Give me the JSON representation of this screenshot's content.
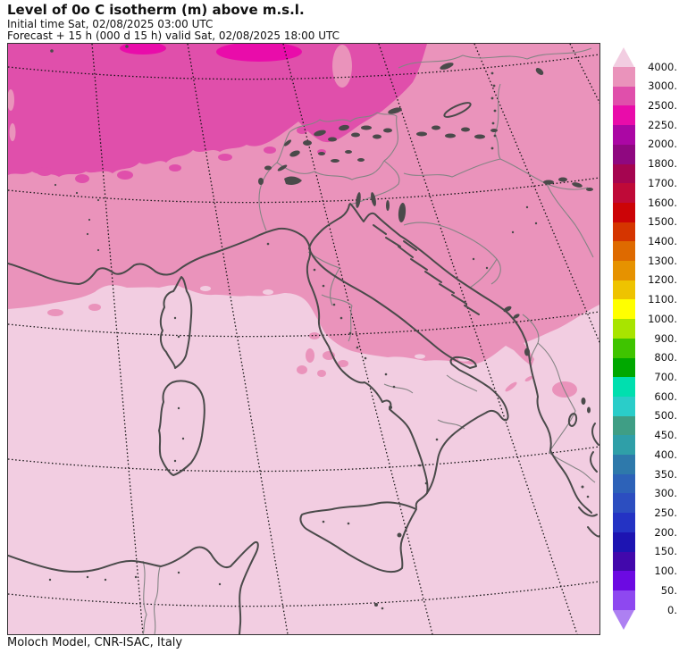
{
  "header": {
    "title": "Level of 0o C isotherm (m) above m.s.l.",
    "initial_time_line": "Initial time  Sat, 02/08/2025  03:00 UTC",
    "forecast_line": "Forecast  +  15 h  (000 d 15 h)  valid Sat, 02/08/2025 18:00 UTC"
  },
  "footer": {
    "attribution": "Moloch Model, CNR-ISAC, Italy"
  },
  "colorbar": {
    "unit": "m",
    "labels": [
      "4000.",
      "3000.",
      "2500.",
      "2250.",
      "2000.",
      "1800.",
      "1700.",
      "1600.",
      "1500.",
      "1400.",
      "1300.",
      "1200.",
      "1100.",
      "1000.",
      "900.",
      "800.",
      "700.",
      "600.",
      "500.",
      "450.",
      "400.",
      "350.",
      "300.",
      "250.",
      "200.",
      "150.",
      "100.",
      "50.",
      "0."
    ],
    "arrow_top_color": "#f2cde1",
    "arrow_bottom_color": "#ad80f2",
    "band_colors": [
      "#ea93bb",
      "#e04fab",
      "#e90caa",
      "#ab07a4",
      "#8f0880",
      "#a50550",
      "#bf0a38",
      "#cc0407",
      "#d53500",
      "#de6a00",
      "#e69200",
      "#eec300",
      "#ffff00",
      "#a8e400",
      "#3fc400",
      "#00a800",
      "#00dfaf",
      "#2acdc9",
      "#3f9e85",
      "#2f9fa8",
      "#2e79ab",
      "#2d62b8",
      "#2c4ec0",
      "#2433c4",
      "#1d14b2",
      "#4208ac",
      "#6c0ae2",
      "#8e48f0"
    ]
  },
  "map": {
    "field_colors": {
      "above_4000": "#f2cde1",
      "level_4000_3000": "#ea93bb",
      "level_3000_2500": "#e04fab",
      "level_2500_2250": "#e90caa"
    },
    "line_colors": {
      "coastline": "#4a4a4a",
      "inner_border": "#848484",
      "graticule": "#141414",
      "frame": "#333333"
    }
  }
}
